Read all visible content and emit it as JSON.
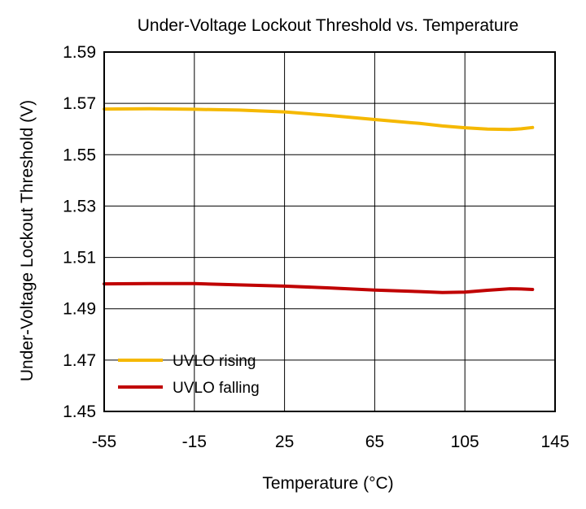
{
  "chart_data": {
    "type": "line",
    "title": "Under-Voltage Lockout Threshold vs. Temperature",
    "xlabel": "Temperature (°C)",
    "ylabel": "Under-Voltage Lockout Threshold (V)",
    "xlim": [
      -55,
      145
    ],
    "ylim": [
      1.45,
      1.59
    ],
    "xticks": [
      -55,
      -15,
      25,
      65,
      105,
      145
    ],
    "yticks": [
      1.45,
      1.47,
      1.49,
      1.51,
      1.53,
      1.55,
      1.57,
      1.59
    ],
    "xtick_labels": [
      "-55",
      "-15",
      "25",
      "65",
      "105",
      "145"
    ],
    "ytick_labels": [
      "1.45",
      "1.47",
      "1.49",
      "1.51",
      "1.53",
      "1.55",
      "1.57",
      "1.59"
    ],
    "grid": true,
    "legend_position": "bottom-left",
    "series": [
      {
        "name": "UVLO rising",
        "color": "#F5B800",
        "x": [
          -55,
          -35,
          -15,
          5,
          25,
          45,
          65,
          85,
          95,
          105,
          115,
          125,
          130,
          135
        ],
        "y": [
          1.5678,
          1.5679,
          1.5677,
          1.5674,
          1.5667,
          1.5653,
          1.5637,
          1.5622,
          1.5612,
          1.5605,
          1.56,
          1.5598,
          1.5601,
          1.5606
        ]
      },
      {
        "name": "UVLO falling",
        "color": "#C00000",
        "x": [
          -55,
          -35,
          -15,
          5,
          25,
          45,
          65,
          85,
          95,
          105,
          115,
          125,
          130,
          135
        ],
        "y": [
          1.4997,
          1.4998,
          1.4998,
          1.4993,
          1.4988,
          1.4981,
          1.4973,
          1.4967,
          1.4963,
          1.4965,
          1.4972,
          1.4978,
          1.4977,
          1.4975
        ]
      }
    ]
  }
}
